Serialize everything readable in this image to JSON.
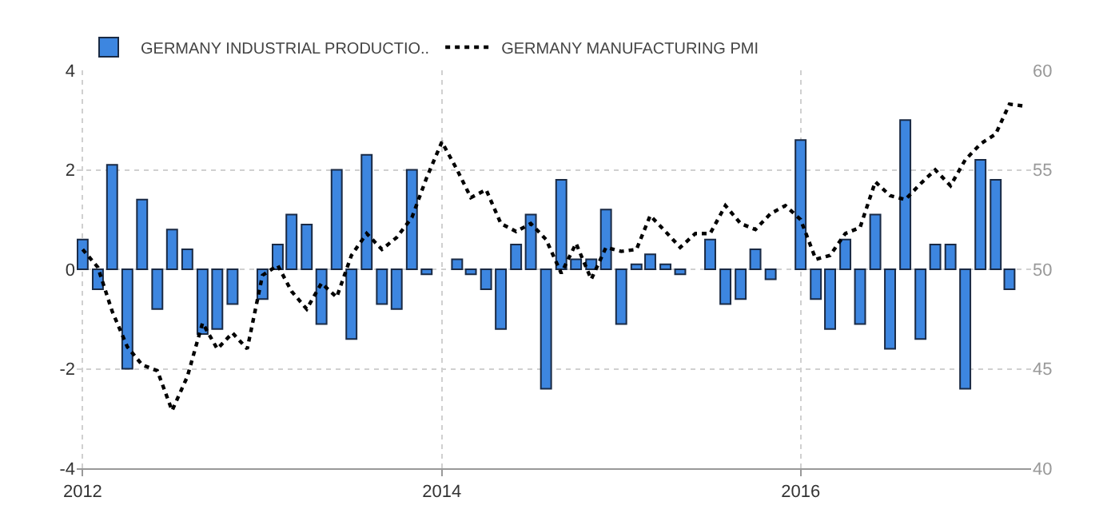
{
  "chart_data": {
    "type": "bar",
    "series": [
      {
        "name": "GERMANY INDUSTRIAL PRODUCTIO..",
        "color": "#3d86e0",
        "x": [
          "2012-01",
          "2012-02",
          "2012-03",
          "2012-04",
          "2012-05",
          "2012-06",
          "2012-07",
          "2012-08",
          "2012-09",
          "2012-10",
          "2012-11",
          "2012-12",
          "2013-01",
          "2013-02",
          "2013-03",
          "2013-04",
          "2013-05",
          "2013-06",
          "2013-07",
          "2013-08",
          "2013-09",
          "2013-10",
          "2013-11",
          "2013-12",
          "2014-01",
          "2014-02",
          "2014-03",
          "2014-04",
          "2014-05",
          "2014-06",
          "2014-07",
          "2014-08",
          "2014-09",
          "2014-10",
          "2014-11",
          "2014-12",
          "2015-01",
          "2015-02",
          "2015-03",
          "2015-04",
          "2015-05",
          "2015-06",
          "2015-07",
          "2015-08",
          "2015-09",
          "2015-10",
          "2015-11",
          "2015-12",
          "2016-01",
          "2016-02",
          "2016-03",
          "2016-04",
          "2016-05",
          "2016-06",
          "2016-07",
          "2016-08",
          "2016-09",
          "2016-10",
          "2016-11",
          "2016-12",
          "2017-01",
          "2017-02",
          "2017-03"
        ],
        "values": [
          0.6,
          -0.4,
          2.1,
          -2.0,
          1.4,
          -0.8,
          0.8,
          0.4,
          -1.3,
          -1.2,
          -0.7,
          null,
          -0.6,
          0.5,
          1.1,
          0.9,
          -1.1,
          2.0,
          -1.4,
          2.3,
          -0.7,
          -0.8,
          2.0,
          -0.1,
          null,
          0.2,
          -0.1,
          -0.4,
          -1.2,
          0.5,
          1.1,
          -2.4,
          1.8,
          0.2,
          0.2,
          1.2,
          -1.1,
          0.1,
          0.3,
          0.1,
          -0.1,
          null,
          0.6,
          -0.7,
          -0.6,
          0.4,
          -0.2,
          null,
          2.6,
          -0.6,
          -1.2,
          0.6,
          -1.1,
          1.1,
          -1.6,
          3.0,
          -1.4,
          0.5,
          0.5,
          -2.4,
          2.2,
          1.8,
          -0.4
        ]
      },
      {
        "name": "GERMANY MANUFACTURING PMI",
        "type": "line",
        "axis": "y2",
        "color": "#000000",
        "line_style": "dotted",
        "marker": "none",
        "x": [
          "2012-01",
          "2012-02",
          "2012-03",
          "2012-04",
          "2012-05",
          "2012-06",
          "2012-07",
          "2012-08",
          "2012-09",
          "2012-10",
          "2012-11",
          "2012-12",
          "2013-01",
          "2013-02",
          "2013-03",
          "2013-04",
          "2013-05",
          "2013-06",
          "2013-07",
          "2013-08",
          "2013-09",
          "2013-10",
          "2013-11",
          "2013-12",
          "2014-01",
          "2014-02",
          "2014-03",
          "2014-04",
          "2014-05",
          "2014-06",
          "2014-07",
          "2014-08",
          "2014-09",
          "2014-10",
          "2014-11",
          "2014-12",
          "2015-01",
          "2015-02",
          "2015-03",
          "2015-04",
          "2015-05",
          "2015-06",
          "2015-07",
          "2015-08",
          "2015-09",
          "2015-10",
          "2015-11",
          "2015-12",
          "2016-01",
          "2016-02",
          "2016-03",
          "2016-04",
          "2016-05",
          "2016-06",
          "2016-07",
          "2016-08",
          "2016-09",
          "2016-10",
          "2016-11",
          "2016-12",
          "2017-01",
          "2017-02",
          "2017-03",
          "2017-04"
        ],
        "values": [
          51.0,
          50.1,
          47.9,
          46.1,
          45.2,
          44.9,
          42.9,
          44.6,
          47.3,
          46.0,
          46.8,
          46.0,
          49.7,
          50.2,
          48.9,
          48.0,
          49.3,
          48.6,
          50.7,
          51.8,
          51.0,
          51.6,
          52.6,
          54.6,
          56.4,
          55.0,
          53.6,
          54.0,
          52.3,
          51.9,
          52.3,
          51.5,
          49.8,
          51.3,
          49.5,
          51.1,
          50.9,
          51.0,
          52.7,
          51.9,
          51.1,
          51.8,
          51.8,
          53.2,
          52.3,
          52.0,
          52.8,
          53.2,
          52.5,
          50.5,
          50.7,
          51.8,
          52.1,
          54.4,
          53.7,
          53.5,
          54.3,
          55.0,
          54.2,
          55.5,
          56.3,
          56.8,
          58.3,
          58.2
        ]
      }
    ],
    "xlim": [
      "2011-12-20",
      "2017-04-14"
    ],
    "xticks": [
      {
        "value": "2012-01-01",
        "label": "2012"
      },
      {
        "value": "2014-01-01",
        "label": "2014"
      },
      {
        "value": "2016-01-01",
        "label": "2016"
      }
    ],
    "ylim": [
      -4,
      4
    ],
    "yticks": [
      -4,
      -2,
      0,
      2,
      4
    ],
    "y2lim": [
      40,
      60
    ],
    "y2ticks": [
      40,
      45,
      50,
      55,
      60
    ],
    "grid": true,
    "legend": "top left"
  }
}
